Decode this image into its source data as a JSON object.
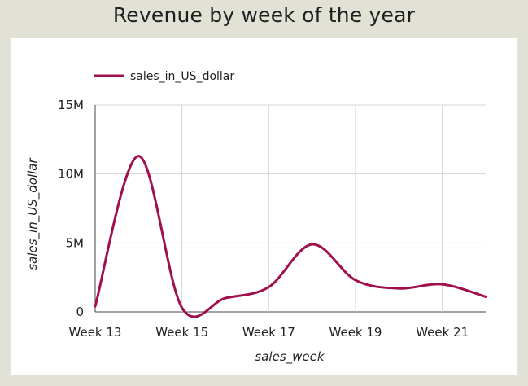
{
  "chart_data": {
    "type": "line",
    "title": "Revenue by week of the year",
    "xlabel": "sales_week",
    "ylabel": "sales_in_US_dollar",
    "x_ticks": [
      "Week 13",
      "Week 15",
      "Week 17",
      "Week 19",
      "Week 21"
    ],
    "y_ticks": [
      "0",
      "5M",
      "10M",
      "15M"
    ],
    "ylim": [
      0,
      15000000
    ],
    "grid": true,
    "legend_position": "top-left",
    "series": [
      {
        "name": "sales_in_US_dollar",
        "color": "#a0104e",
        "x": [
          13,
          14,
          15,
          16,
          17,
          18,
          19,
          20,
          21,
          22
        ],
        "values": [
          400000,
          11300000,
          300000,
          1000000,
          1800000,
          4900000,
          2300000,
          1700000,
          2000000,
          1100000
        ]
      }
    ]
  }
}
